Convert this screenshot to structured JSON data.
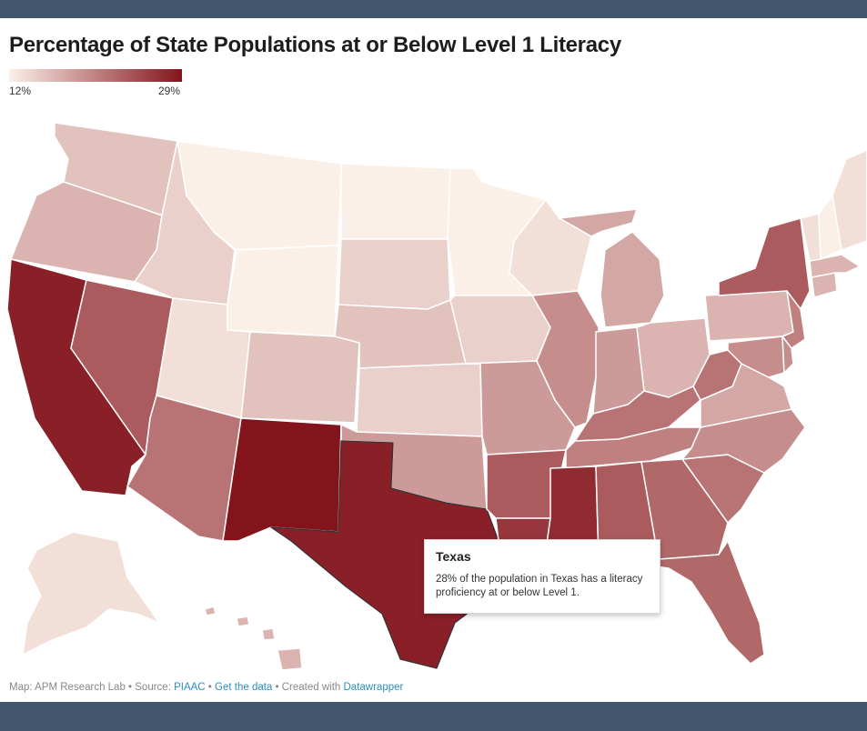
{
  "title": "Percentage of State Populations at or Below Level 1 Literacy",
  "legend": {
    "min_label": "12%",
    "max_label": "29%",
    "min_value": 12,
    "max_value": 29,
    "color_min": "#fbf0e8",
    "color_max": "#84141c"
  },
  "map_data": {
    "type": "choropleth",
    "regions": [
      {
        "id": "WA",
        "value": 15
      },
      {
        "id": "OR",
        "value": 16
      },
      {
        "id": "CA",
        "value": 28
      },
      {
        "id": "NV",
        "value": 23
      },
      {
        "id": "ID",
        "value": 14
      },
      {
        "id": "MT",
        "value": 12
      },
      {
        "id": "WY",
        "value": 12
      },
      {
        "id": "UT",
        "value": 13
      },
      {
        "id": "AZ",
        "value": 21
      },
      {
        "id": "CO",
        "value": 15
      },
      {
        "id": "NM",
        "value": 29
      },
      {
        "id": "ND",
        "value": 12
      },
      {
        "id": "SD",
        "value": 14
      },
      {
        "id": "NE",
        "value": 15
      },
      {
        "id": "KS",
        "value": 14
      },
      {
        "id": "OK",
        "value": 18
      },
      {
        "id": "TX",
        "value": 28
      },
      {
        "id": "MN",
        "value": 12
      },
      {
        "id": "IA",
        "value": 14
      },
      {
        "id": "MO",
        "value": 18
      },
      {
        "id": "AR",
        "value": 23
      },
      {
        "id": "LA",
        "value": 26
      },
      {
        "id": "WI",
        "value": 13
      },
      {
        "id": "IL",
        "value": 19
      },
      {
        "id": "MI",
        "value": 17
      },
      {
        "id": "IN",
        "value": 18
      },
      {
        "id": "OH",
        "value": 16
      },
      {
        "id": "KY",
        "value": 21
      },
      {
        "id": "TN",
        "value": 20
      },
      {
        "id": "MS",
        "value": 27
      },
      {
        "id": "AL",
        "value": 23
      },
      {
        "id": "GA",
        "value": 22
      },
      {
        "id": "FL",
        "value": 22
      },
      {
        "id": "SC",
        "value": 21
      },
      {
        "id": "NC",
        "value": 19
      },
      {
        "id": "VA",
        "value": 17
      },
      {
        "id": "WV",
        "value": 21
      },
      {
        "id": "PA",
        "value": 16
      },
      {
        "id": "NY",
        "value": 23
      },
      {
        "id": "NJ",
        "value": 20
      },
      {
        "id": "MD",
        "value": 19
      },
      {
        "id": "DE",
        "value": 19
      },
      {
        "id": "CT",
        "value": 16
      },
      {
        "id": "MA",
        "value": 16
      },
      {
        "id": "VT",
        "value": 13
      },
      {
        "id": "NH",
        "value": 12
      },
      {
        "id": "ME",
        "value": 13
      },
      {
        "id": "AK",
        "value": 13
      },
      {
        "id": "HI",
        "value": 16
      }
    ]
  },
  "tooltip": {
    "title": "Texas",
    "body": "28% of the population in Texas has a literacy proficiency at or below Level 1."
  },
  "footer": {
    "map_prefix": "Map: APM Research Lab • Source: ",
    "source_link": "PIAAC",
    "sep1": " • ",
    "data_link": "Get the data",
    "sep2": " • Created with ",
    "dw_link": "Datawrapper"
  }
}
